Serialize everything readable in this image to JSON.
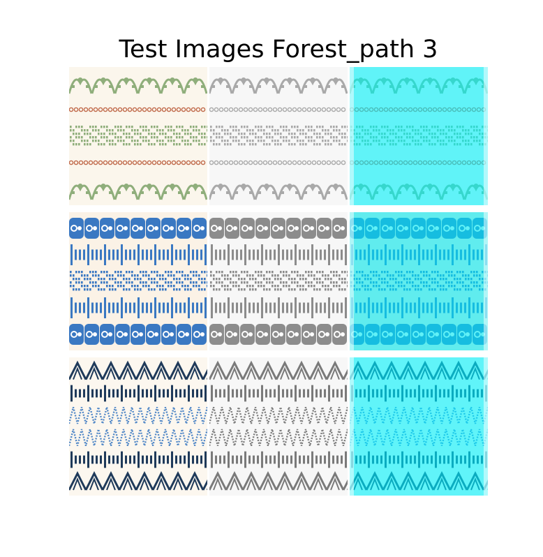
{
  "figure": {
    "title": "Test Images Forest_path 3"
  },
  "grid": {
    "rows": [
      {
        "name": "row-green-pattern",
        "background": "#fbf6ec",
        "colors": {
          "primary": "#8fae7b",
          "accent": "#c0694a",
          "gray": "#a9a9a9",
          "cyan": "#00f0ff"
        },
        "bands": [
          "floral",
          "chain",
          "blocks",
          "chain",
          "floral"
        ]
      },
      {
        "name": "row-blue-pattern",
        "background": "#fbf2e6",
        "colors": {
          "primary": "#3a78c2",
          "accent": "#2d5f9a",
          "gray": "#8c8c8c",
          "cyan": "#00e8f2"
        },
        "bands": [
          "scroll",
          "ladder",
          "blocks",
          "ladder",
          "scroll"
        ]
      },
      {
        "name": "row-navy-pattern",
        "background": "#fcf7ef",
        "colors": {
          "primary": "#1f3a5a",
          "accent": "#4f86c6",
          "gray": "#7a7a7a",
          "cyan": "#00f2ff"
        },
        "bands": [
          "diamond",
          "ladder",
          "zigzag",
          "zigzag",
          "ladder",
          "diamond"
        ]
      }
    ],
    "columns": [
      "original",
      "grayscale",
      "cyan-overlay"
    ]
  }
}
